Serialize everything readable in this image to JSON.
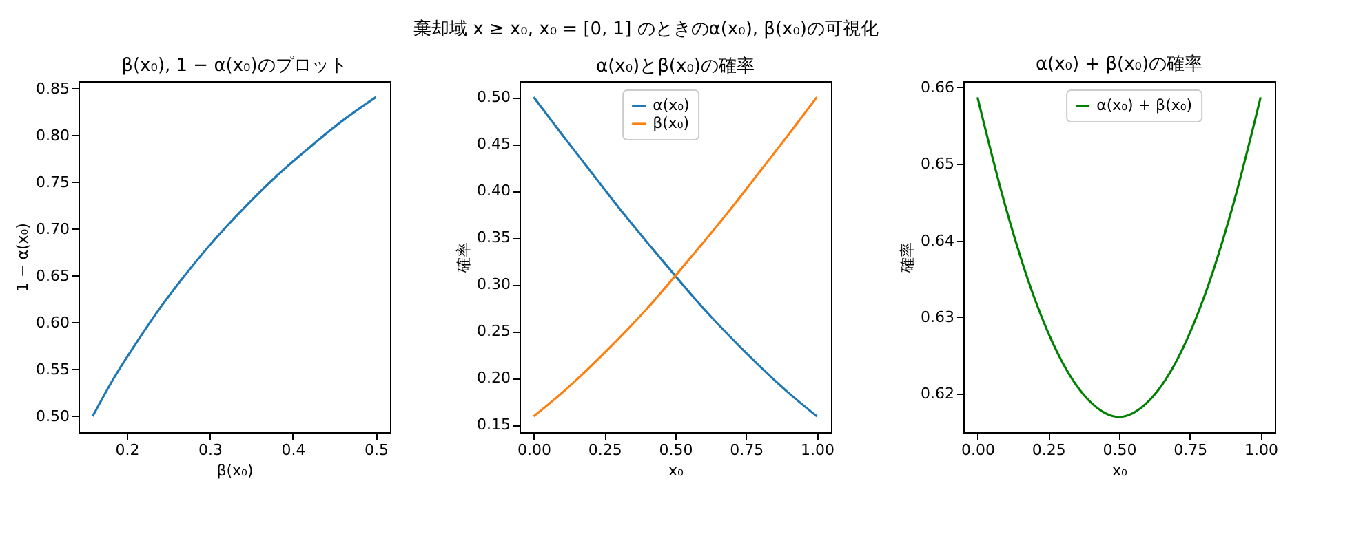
{
  "chart_data": [
    {
      "type": "line",
      "title": "β(x₀), 1 − α(x₀)のプロット",
      "xlabel": "β(x₀)",
      "ylabel": "1 − α(x₀)",
      "annotations": [
        "棄却域 x ≥ x₀, x₀ = [0, 1] のときのα(x₀), β(x₀)の可視化"
      ],
      "x": [
        0.159,
        0.184,
        0.212,
        0.242,
        0.274,
        0.309,
        0.345,
        0.382,
        0.421,
        0.46,
        0.5
      ],
      "series": [
        {
          "color": "#1f77b4",
          "values": [
            0.5,
            0.54,
            0.579,
            0.618,
            0.655,
            0.692,
            0.726,
            0.758,
            0.788,
            0.816,
            0.841
          ]
        }
      ],
      "xlim": [
        0.142,
        0.517
      ],
      "ylim": [
        0.483,
        0.858
      ],
      "xticks": [
        0.2,
        0.3,
        0.4,
        0.5
      ],
      "yticks": [
        {
          "value": 0.5,
          "label": "0.50"
        },
        {
          "value": 0.55,
          "label": "0.55"
        },
        {
          "value": 0.6,
          "label": "0.60"
        },
        {
          "value": 0.65,
          "label": "0.65"
        },
        {
          "value": 0.7,
          "label": "0.70"
        },
        {
          "value": 0.75,
          "label": "0.75"
        },
        {
          "value": 0.8,
          "label": "0.80"
        },
        {
          "value": 0.85,
          "label": "0.85"
        }
      ],
      "grid": false,
      "legend": false
    },
    {
      "type": "line",
      "title": "α(x₀)とβ(x₀)の確率",
      "xlabel": "x₀",
      "ylabel": "確率",
      "x": [
        0,
        0.1,
        0.2,
        0.3,
        0.4,
        0.5,
        0.6,
        0.7,
        0.8,
        0.9,
        1
      ],
      "series": [
        {
          "name": "α(x₀)",
          "color": "#1f77b4",
          "values": [
            0.5,
            0.46,
            0.421,
            0.382,
            0.345,
            0.309,
            0.274,
            0.242,
            0.212,
            0.184,
            0.159
          ]
        },
        {
          "name": "β(x₀)",
          "color": "#ff7f0e",
          "values": [
            0.159,
            0.184,
            0.212,
            0.242,
            0.274,
            0.309,
            0.345,
            0.382,
            0.421,
            0.46,
            0.5
          ]
        }
      ],
      "xlim": [
        -0.05,
        1.05
      ],
      "ylim": [
        0.142,
        0.517
      ],
      "xticks": [
        {
          "value": 0,
          "label": "0.00"
        },
        {
          "value": 0.25,
          "label": "0.25"
        },
        {
          "value": 0.5,
          "label": "0.50"
        },
        {
          "value": 0.75,
          "label": "0.75"
        },
        {
          "value": 1,
          "label": "1.00"
        }
      ],
      "yticks": [
        {
          "value": 0.15,
          "label": "0.15"
        },
        {
          "value": 0.2,
          "label": "0.20"
        },
        {
          "value": 0.25,
          "label": "0.25"
        },
        {
          "value": 0.3,
          "label": "0.30"
        },
        {
          "value": 0.35,
          "label": "0.35"
        },
        {
          "value": 0.4,
          "label": "0.40"
        },
        {
          "value": 0.45,
          "label": "0.45"
        },
        {
          "value": 0.5,
          "label": "0.50"
        }
      ],
      "grid": false,
      "legend": "top"
    },
    {
      "type": "line",
      "title": "α(x₀) + β(x₀)の確率",
      "xlabel": "x₀",
      "ylabel": "確率",
      "x": [
        0,
        0.1,
        0.2,
        0.3,
        0.4,
        0.5,
        0.6,
        0.7,
        0.8,
        0.9,
        1
      ],
      "series": [
        {
          "name": "α(x₀) + β(x₀)",
          "color": "#008000",
          "values": [
            0.6587,
            0.6443,
            0.6326,
            0.6241,
            0.6189,
            0.617,
            0.6189,
            0.6241,
            0.6326,
            0.6443,
            0.6587
          ]
        }
      ],
      "xlim": [
        -0.05,
        1.05
      ],
      "ylim": [
        0.615,
        0.6608
      ],
      "xticks": [
        {
          "value": 0,
          "label": "0.00"
        },
        {
          "value": 0.25,
          "label": "0.25"
        },
        {
          "value": 0.5,
          "label": "0.50"
        },
        {
          "value": 0.75,
          "label": "0.75"
        },
        {
          "value": 1,
          "label": "1.00"
        }
      ],
      "yticks": [
        0.62,
        0.63,
        0.64,
        0.65,
        0.66
      ],
      "grid": false,
      "legend": "top"
    }
  ]
}
